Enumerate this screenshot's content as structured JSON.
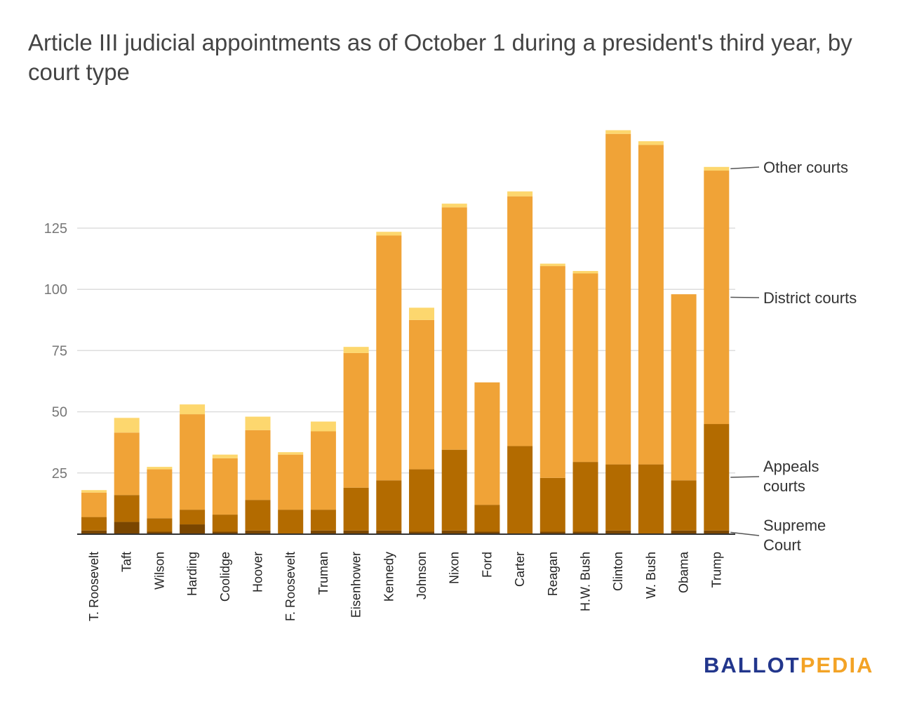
{
  "title": "Article III judicial appointments as of October 1 during a president's third year, by court type",
  "logo": {
    "part1": "BALLOT",
    "part2": "PEDIA"
  },
  "colors": {
    "supreme": "#7a4600",
    "appeals": "#b36b00",
    "district": "#f0a337",
    "other": "#fdd76e",
    "grid": "#dddddd",
    "axis": "#333333"
  },
  "chart_data": {
    "type": "bar",
    "stacked": true,
    "title": "Article III judicial appointments as of October 1 during a president's third year, by court type",
    "xlabel": "",
    "ylabel": "",
    "ylim": [
      0,
      165
    ],
    "yticks": [
      25,
      50,
      75,
      100,
      125
    ],
    "grid": true,
    "legend_position": "right, labels at series",
    "categories": [
      "T. Roosevelt",
      "Taft",
      "Wilson",
      "Harding",
      "Coolidge",
      "Hoover",
      "F. Roosevelt",
      "Truman",
      "Eisenhower",
      "Kennedy",
      "Johnson",
      "Nixon",
      "Ford",
      "Carter",
      "Reagan",
      "H.W. Bush",
      "Clinton",
      "W. Bush",
      "Obama",
      "Trump"
    ],
    "series": [
      {
        "name": "Supreme Court",
        "key": "supreme",
        "values": [
          1.5,
          5,
          1,
          4,
          1,
          1.5,
          0,
          1.5,
          1.5,
          1.5,
          1,
          1.5,
          1,
          0,
          1,
          1,
          1.5,
          0,
          1.5,
          1.5
        ]
      },
      {
        "name": "Appeals courts",
        "key": "appeals",
        "values": [
          5.5,
          11,
          5.5,
          6,
          7,
          12.5,
          10,
          8.5,
          17.5,
          20.5,
          25.5,
          33,
          11,
          36,
          22,
          28.5,
          27,
          28.5,
          20.5,
          43.5
        ]
      },
      {
        "name": "District courts",
        "key": "district",
        "values": [
          10,
          25.5,
          20,
          39,
          23,
          28.5,
          22.5,
          32,
          55,
          100,
          61,
          99,
          50,
          102,
          86.5,
          77,
          135,
          130.5,
          76,
          103.5
        ]
      },
      {
        "name": "Other courts",
        "key": "other",
        "values": [
          1,
          6,
          1,
          4,
          1.5,
          5.5,
          1,
          4,
          2.5,
          1.5,
          5,
          1.5,
          0,
          2,
          1,
          1,
          1.5,
          1.5,
          0,
          1.5
        ]
      }
    ]
  }
}
